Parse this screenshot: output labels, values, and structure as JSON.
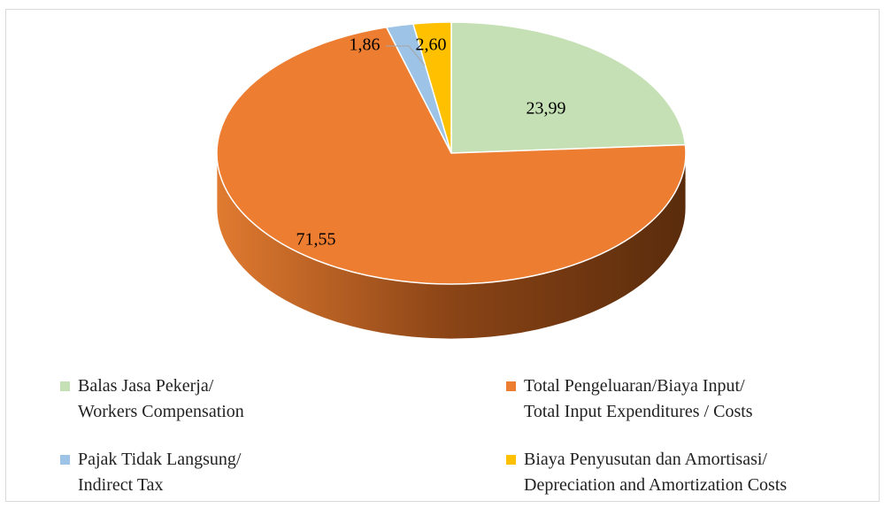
{
  "chart_data": {
    "type": "pie",
    "series": [
      {
        "name": "Balas Jasa Pekerja/\nWorkers Compensation",
        "color": "#c5e0b4"
      },
      {
        "name": "Total Pengeluaran/Biaya Input/\nTotal Input Expenditures / Costs",
        "color": "#ed7d31"
      },
      {
        "name": "Pajak Tidak Langsung/\nIndirect Tax",
        "color": "#9dc3e6"
      },
      {
        "name": "Biaya Penyusutan dan Amortisasi/\nDepreciation and Amortization Costs",
        "color": "#ffc000"
      }
    ],
    "values": [
      23.99,
      71.55,
      1.86,
      2.6
    ],
    "value_labels": [
      "23,99",
      "71,55",
      "1,86",
      "2,60"
    ],
    "legend": "bottom"
  }
}
